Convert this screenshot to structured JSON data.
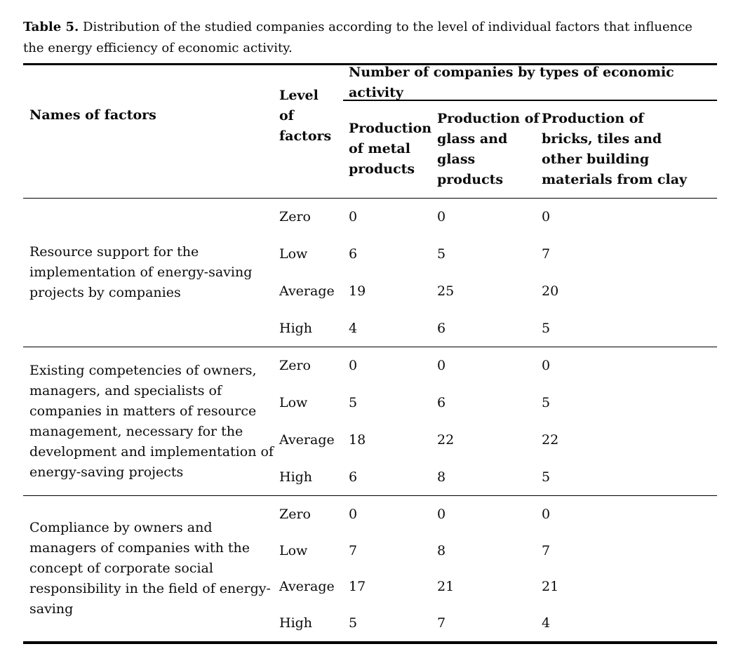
{
  "caption": {
    "label": "Table 5.",
    "text": "Distribution of the studied companies according to the level of individual factors that influence the energy efficiency of economic activity."
  },
  "table": {
    "columns": {
      "names": "Names of factors",
      "level": "Level\nof\nfactors",
      "span_title": "Number of companies by types of economic activity",
      "metal": "Production\nof metal\nproducts",
      "glass": "Production of\nglass and glass\nproducts",
      "bricks": "Production of\nbricks, tiles and\nother building\nmaterials from clay"
    },
    "groups": [
      {
        "factor": "Resource support for the\nimplementation of energy-saving\nprojects by companies",
        "rows": [
          {
            "level": "Zero",
            "metal": "0",
            "glass": "0",
            "bricks": "0"
          },
          {
            "level": "Low",
            "metal": "6",
            "glass": "5",
            "bricks": "7"
          },
          {
            "level": "Average",
            "metal": "19",
            "glass": "25",
            "bricks": "20"
          },
          {
            "level": "High",
            "metal": "4",
            "glass": "6",
            "bricks": "5"
          }
        ]
      },
      {
        "factor": "Existing competencies of owners,\nmanagers, and specialists of\ncompanies in matters of resource\nmanagement, necessary for the\ndevelopment and implementation of\nenergy-saving projects",
        "rows": [
          {
            "level": "Zero",
            "metal": "0",
            "glass": "0",
            "bricks": "0"
          },
          {
            "level": "Low",
            "metal": "5",
            "glass": "6",
            "bricks": "5"
          },
          {
            "level": "Average",
            "metal": "18",
            "glass": "22",
            "bricks": "22"
          },
          {
            "level": "High",
            "metal": "6",
            "glass": "8",
            "bricks": "5"
          }
        ]
      },
      {
        "factor": "Compliance by owners and\nmanagers of companies with the\nconcept of corporate social\nresponsibility in the field of energy-\nsaving",
        "rows": [
          {
            "level": "Zero",
            "metal": "0",
            "glass": "0",
            "bricks": "0"
          },
          {
            "level": "Low",
            "metal": "7",
            "glass": "8",
            "bricks": "7"
          },
          {
            "level": "Average",
            "metal": "17",
            "glass": "21",
            "bricks": "21"
          },
          {
            "level": "High",
            "metal": "5",
            "glass": "7",
            "bricks": "4"
          }
        ]
      }
    ]
  },
  "colors": {
    "text": "#0b0b0b",
    "rule": "#000000",
    "background": "#ffffff"
  }
}
